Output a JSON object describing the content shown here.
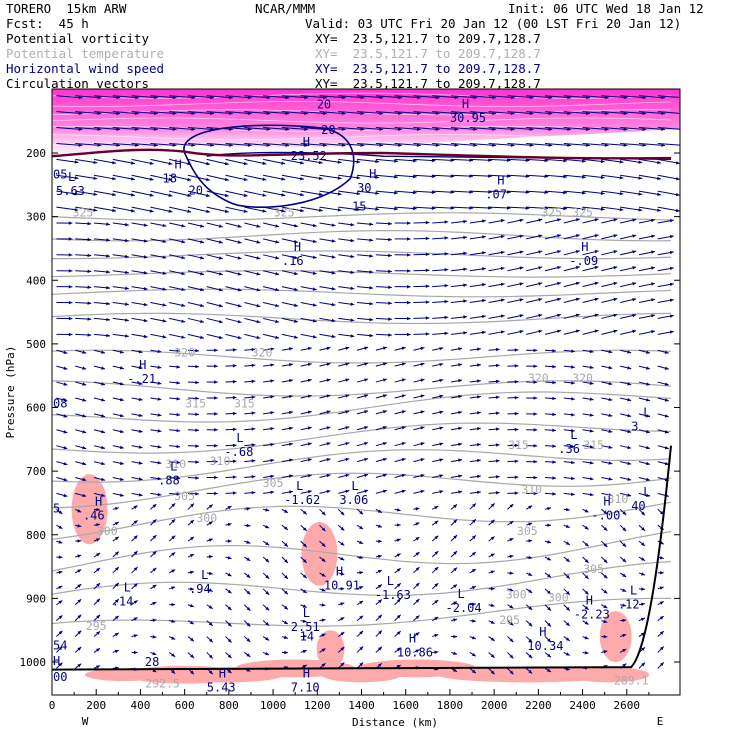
{
  "header": {
    "model": "TORERO  15km ARW",
    "org": "NCAR/MMM",
    "init": "Init: 06 UTC Wed 18 Jan 12",
    "fcst": "Fcst:  45 h",
    "valid": "Valid: 03 UTC Fri 20 Jan 12 (00 LST Fri 20 Jan 12)",
    "fields": [
      {
        "name": "Potential vorticity",
        "xy": "XY=  23.5,121.7 to 209.7,128.7",
        "color": "#000000"
      },
      {
        "name": "Potential temperature",
        "xy": "XY=  23.5,121.7 to 209.7,128.7",
        "color": "#b0b0b0"
      },
      {
        "name": "Horizontal wind speed",
        "xy": "XY=  23.5,121.7 to 209.7,128.7",
        "color": "#000080"
      },
      {
        "name": "Circulation vectors",
        "xy": "XY=  23.5,121.7 to 209.7,128.7",
        "color": "#000000"
      }
    ]
  },
  "chart_data": {
    "type": "cross-section",
    "xlabel": "Distance (km)",
    "ylabel": "Pressure (hPa)",
    "xlim": [
      0,
      2800
    ],
    "ylim": [
      1050,
      100
    ],
    "x_ticks": [
      0,
      200,
      400,
      600,
      800,
      1000,
      1200,
      1400,
      1600,
      1800,
      2000,
      2200,
      2400,
      2600
    ],
    "y_ticks": [
      200,
      300,
      400,
      500,
      600,
      700,
      800,
      900,
      1000
    ],
    "side_labels": {
      "left": "W",
      "right": "E"
    },
    "colors": {
      "pv_fill": "#ffaaaa",
      "strat_fill": "#ff33cc",
      "wind": "#000080",
      "theta": "#a8a8a8",
      "pv_contour": "#660033"
    },
    "theta_labels": [
      {
        "x": 140,
        "p": 300,
        "text": "325"
      },
      {
        "x": 1050,
        "p": 300,
        "text": "325"
      },
      {
        "x": 2260,
        "p": 300,
        "text": "325"
      },
      {
        "x": 2400,
        "p": 300,
        "text": "325"
      },
      {
        "x": 600,
        "p": 520,
        "text": "320"
      },
      {
        "x": 950,
        "p": 520,
        "text": "320"
      },
      {
        "x": 2200,
        "p": 560,
        "text": "320"
      },
      {
        "x": 2400,
        "p": 560,
        "text": "320"
      },
      {
        "x": 650,
        "p": 600,
        "text": "315"
      },
      {
        "x": 870,
        "p": 600,
        "text": "315"
      },
      {
        "x": 2110,
        "p": 665,
        "text": "315"
      },
      {
        "x": 2450,
        "p": 665,
        "text": "315"
      },
      {
        "x": 560,
        "p": 695,
        "text": "310"
      },
      {
        "x": 760,
        "p": 690,
        "text": "310"
      },
      {
        "x": 2170,
        "p": 735,
        "text": "310"
      },
      {
        "x": 2560,
        "p": 750,
        "text": "310"
      },
      {
        "x": 1000,
        "p": 725,
        "text": "305"
      },
      {
        "x": 600,
        "p": 745,
        "text": "305"
      },
      {
        "x": 2150,
        "p": 800,
        "text": "305"
      },
      {
        "x": 2450,
        "p": 860,
        "text": "305"
      },
      {
        "x": 250,
        "p": 800,
        "text": "300"
      },
      {
        "x": 700,
        "p": 780,
        "text": "300"
      },
      {
        "x": 2100,
        "p": 900,
        "text": "300"
      },
      {
        "x": 2290,
        "p": 905,
        "text": "300"
      },
      {
        "x": 200,
        "p": 950,
        "text": "295"
      },
      {
        "x": 2070,
        "p": 940,
        "text": "295"
      },
      {
        "x": 500,
        "p": 1040,
        "text": "292.5"
      },
      {
        "x": 2620,
        "p": 1035,
        "text": "289.1"
      }
    ],
    "wind_labels": [
      {
        "x": 1230,
        "p": 130,
        "text": "20"
      },
      {
        "x": 1250,
        "p": 170,
        "text": "20"
      },
      {
        "x": 650,
        "p": 265,
        "text": "20"
      },
      {
        "x": 1390,
        "p": 290,
        "text": "15"
      }
    ],
    "extrema": [
      {
        "x": 1800,
        "p": 145,
        "sym": "H",
        "value": "30.95",
        "color": "#000080"
      },
      {
        "x": 1080,
        "p": 205,
        "sym": "H",
        "value": "23.52",
        "color": "#000080"
      },
      {
        "x": 0,
        "p": 260,
        "sym": "L",
        "value": "5.63",
        "color": "#000080"
      },
      {
        "x": 500,
        "p": 240,
        "sym": "H",
        "value": "18",
        "color": "#000080"
      },
      {
        "x": 1380,
        "p": 255,
        "sym": "H",
        "value": "30",
        "color": "#000080"
      },
      {
        "x": 1960,
        "p": 265,
        "sym": "H",
        "value": ".07",
        "color": "#000080"
      },
      {
        "x": 1040,
        "p": 370,
        "sym": "H",
        "value": ".16",
        "color": "#000080"
      },
      {
        "x": 2340,
        "p": 370,
        "sym": "H",
        "value": "-.09",
        "color": "#000080"
      },
      {
        "x": 340,
        "p": 555,
        "sym": "H",
        "value": "-.21",
        "color": "#000080"
      },
      {
        "x": 780,
        "p": 670,
        "sym": "L",
        "value": "-.68",
        "color": "#000080"
      },
      {
        "x": 480,
        "p": 715,
        "sym": "L",
        "value": ".88",
        "color": "#000080"
      },
      {
        "x": 2290,
        "p": 665,
        "sym": "L",
        "value": ".36",
        "color": "#000080"
      },
      {
        "x": 140,
        "p": 770,
        "sym": "H",
        "value": ".46",
        "color": "#000080"
      },
      {
        "x": 1050,
        "p": 745,
        "sym": "L",
        "value": "-1.62",
        "color": "#000080"
      },
      {
        "x": 1300,
        "p": 745,
        "sym": "L",
        "value": "3.06",
        "color": "#000080"
      },
      {
        "x": 2440,
        "p": 770,
        "sym": "H",
        "value": "-.00",
        "color": "#000080"
      },
      {
        "x": 1230,
        "p": 880,
        "sym": "H",
        "value": "10.91",
        "color": "#000080"
      },
      {
        "x": 1460,
        "p": 895,
        "sym": "L",
        "value": "-1.63",
        "color": "#000080"
      },
      {
        "x": 620,
        "p": 885,
        "sym": "L",
        "value": ".94",
        "color": "#000080"
      },
      {
        "x": 270,
        "p": 905,
        "sym": "L",
        "value": ".14",
        "color": "#000080"
      },
      {
        "x": 1780,
        "p": 915,
        "sym": "L",
        "value": "-2.04",
        "color": "#000080"
      },
      {
        "x": 2560,
        "p": 910,
        "sym": "L",
        "value": ".12",
        "color": "#000080"
      },
      {
        "x": 2360,
        "p": 925,
        "sym": "H",
        "value": "-2.23",
        "color": "#000080"
      },
      {
        "x": 1080,
        "p": 945,
        "sym": "L",
        "value": "2.51",
        "color": "#000080"
      },
      {
        "x": 1120,
        "p": 960,
        "sym": "",
        "value": "14",
        "color": "#000080"
      },
      {
        "x": 1560,
        "p": 985,
        "sym": "H",
        "value": "10.86",
        "color": "#000080"
      },
      {
        "x": 2150,
        "p": 975,
        "sym": "H",
        "value": "10.34",
        "color": "#000080"
      },
      {
        "x": 420,
        "p": 1000,
        "sym": "",
        "value": "28",
        "color": "#000080"
      },
      {
        "x": 700,
        "p": 1040,
        "sym": "H",
        "value": "5.43",
        "color": "#000080"
      },
      {
        "x": 1080,
        "p": 1040,
        "sym": "H",
        "value": "7.10",
        "color": "#000080"
      },
      {
        "x": 2620,
        "p": 630,
        "sym": "L",
        "value": "3",
        "color": "#000080"
      },
      {
        "x": 2620,
        "p": 755,
        "sym": "L",
        "value": "40",
        "color": "#000080"
      }
    ],
    "edge_labels": [
      {
        "x": 0,
        "p": 600,
        "text": "08"
      },
      {
        "x": 0,
        "p": 765,
        "text": "5"
      },
      {
        "x": 0,
        "p": 980,
        "text": "54"
      },
      {
        "x": 0,
        "p": 1005,
        "text": "H"
      },
      {
        "x": 0,
        "p": 1030,
        "text": "00"
      },
      {
        "x": 0,
        "p": 240,
        "text": "05"
      }
    ]
  }
}
